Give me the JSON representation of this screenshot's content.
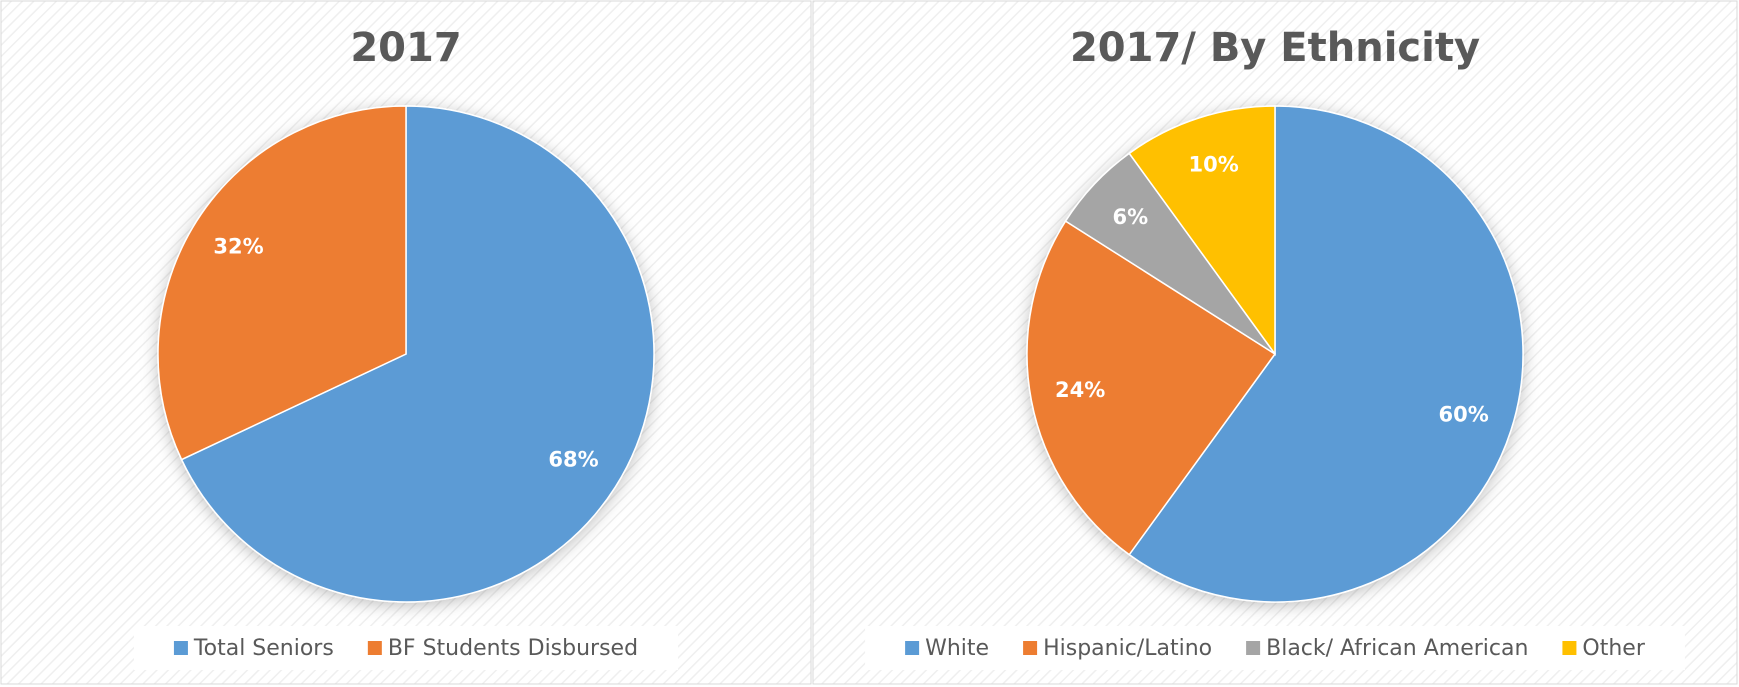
{
  "chart_data": [
    {
      "type": "pie",
      "title": "2017",
      "categories": [
        "Total Seniors",
        "BF Students Disbursed"
      ],
      "values": [
        68,
        32
      ],
      "value_labels": [
        "68%",
        "32%"
      ],
      "colors": [
        "#5b9bd5",
        "#ed7d31"
      ]
    },
    {
      "type": "pie",
      "title": "2017/ By Ethnicity",
      "categories": [
        "White",
        "Hispanic/Latino",
        "Black/ African American",
        "Other"
      ],
      "values": [
        60,
        24,
        6,
        10
      ],
      "value_labels": [
        "60%",
        "24%",
        "6%",
        "10%"
      ],
      "colors": [
        "#5b9bd5",
        "#ed7d31",
        "#a5a5a5",
        "#ffc000"
      ]
    }
  ]
}
